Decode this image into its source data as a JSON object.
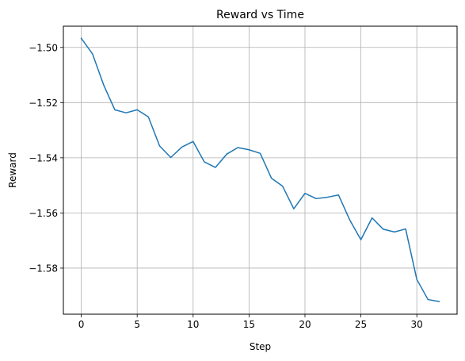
{
  "chart_data": {
    "type": "line",
    "title": "Reward vs Time",
    "xlabel": "Step",
    "ylabel": "Reward",
    "grid": true,
    "xlim": [
      -1.6,
      33.6
    ],
    "ylim": [
      -1.5967,
      -1.4923
    ],
    "xticks": [
      0,
      5,
      10,
      15,
      20,
      25,
      30
    ],
    "xtick_labels": [
      "0",
      "5",
      "10",
      "15",
      "20",
      "25",
      "30"
    ],
    "yticks": [
      -1.5,
      -1.52,
      -1.54,
      -1.56,
      -1.58
    ],
    "ytick_labels": [
      "−1.50",
      "−1.52",
      "−1.54",
      "−1.56",
      "−1.58"
    ],
    "series": [
      {
        "color": "#1f77b4",
        "x": [
          0,
          1,
          2,
          3,
          4,
          5,
          6,
          7,
          8,
          9,
          10,
          11,
          12,
          13,
          14,
          15,
          16,
          17,
          18,
          19,
          20,
          21,
          22,
          23,
          24,
          25,
          26,
          27,
          28,
          29,
          30,
          31,
          32
        ],
        "y": [
          -1.4967,
          -1.5023,
          -1.5136,
          -1.5226,
          -1.5237,
          -1.5226,
          -1.5252,
          -1.5357,
          -1.5399,
          -1.5361,
          -1.5341,
          -1.5415,
          -1.5435,
          -1.5387,
          -1.5363,
          -1.5371,
          -1.5384,
          -1.5474,
          -1.5503,
          -1.5585,
          -1.5529,
          -1.5548,
          -1.5543,
          -1.5535,
          -1.5625,
          -1.5697,
          -1.5618,
          -1.5659,
          -1.5669,
          -1.5658,
          -1.5841,
          -1.5914,
          -1.5921
        ]
      }
    ]
  }
}
